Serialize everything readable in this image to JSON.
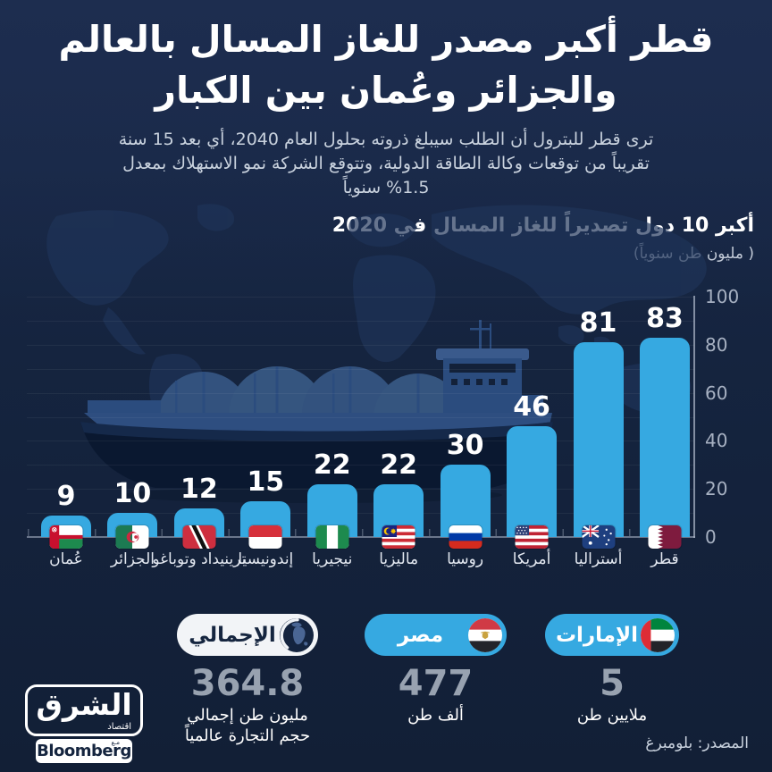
{
  "header": {
    "title_line1": "قطر أكبر مصدر للغاز المسال بالعالم",
    "title_line2": "والجزائر وعُمان بين الكبار",
    "subtitle": "ترى قطر للبترول أن الطلب سيبلغ ذروته بحلول العام 2040، أي بعد 15 سنة تقريباً من توقعات وكالة الطاقة الدولية، وتتوقع الشركة نمو الاستهلاك بمعدل 1.5% سنوياً"
  },
  "chart": {
    "title": "أكبر 10 دول تصديراً للغاز المسال في 2020",
    "unit_label": "( مليون طن سنوياً)"
  },
  "chart_data": {
    "type": "bar",
    "title": "أكبر 10 دول تصديراً للغاز المسال في 2020",
    "unit": "مليون طن سنوياً",
    "year": "2020",
    "categories": [
      "قطر",
      "أستراليا",
      "أمريكا",
      "روسيا",
      "ماليزيا",
      "نيجيريا",
      "إندونيسيا",
      "ترينيداد وتوباغو",
      "الجزائر",
      "عُمان"
    ],
    "values": [
      83,
      81,
      46,
      30,
      22,
      22,
      15,
      12,
      10,
      9
    ],
    "flags": [
      "qatar",
      "australia",
      "usa",
      "russia",
      "malaysia",
      "nigeria",
      "indonesia",
      "trinidad",
      "algeria",
      "oman"
    ],
    "ylim": [
      0,
      100
    ],
    "y_ticks": [
      0,
      20,
      40,
      60,
      80,
      100
    ],
    "bar_color": "#36A9E1",
    "grid": "faint-horizontal",
    "legend": "none",
    "order": "largest-at-right (RTL)"
  },
  "stats": [
    {
      "label": "الإمارات",
      "value": "5",
      "unit": "ملايين طن",
      "flag": "uae"
    },
    {
      "label": "مصر",
      "value": "477",
      "unit": "ألف طن",
      "flag": "egypt"
    },
    {
      "label": "الإجمالي",
      "value": "364.8",
      "unit_line1": "مليون طن إجمالي",
      "unit_line2": "حجم التجارة عالمياً",
      "icon": "globe"
    }
  ],
  "footer": {
    "source": "المصدر: بلومبرغ"
  },
  "logo": {
    "name": "الشرق",
    "tagline": "اقتصاد",
    "conjunction": "مـع",
    "partner": "Bloomberg"
  },
  "colors": {
    "background": "#15243F",
    "bar_blue": "#36A9E1",
    "pill_white": "#F2F4F7",
    "value_gray": "#98A2B0",
    "subtitle_gray": "#C9D2DE",
    "axis_text": "#A7B1C2",
    "navy_text": "#15253F"
  }
}
